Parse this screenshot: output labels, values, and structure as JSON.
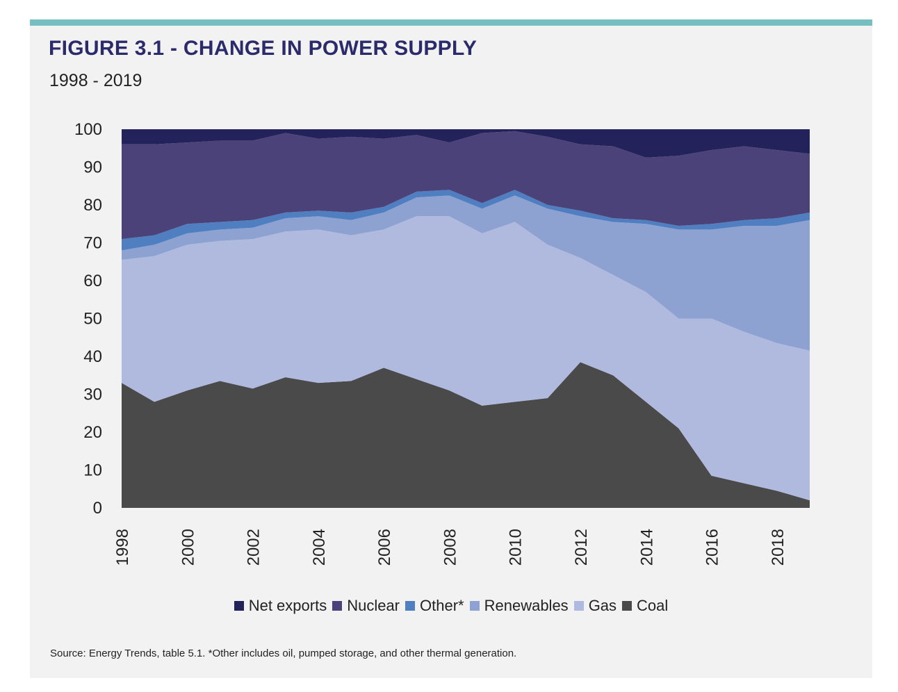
{
  "figure": {
    "title": "FIGURE 3.1 - CHANGE IN POWER SUPPLY",
    "subtitle": "1998 - 2019",
    "source_note": "Source: Energy Trends, table 5.1. *Other includes oil, pumped storage, and other thermal generation.",
    "accent_color": "#75bfc3"
  },
  "chart_data": {
    "type": "area",
    "stacked": true,
    "x": [
      1998,
      1999,
      2000,
      2001,
      2002,
      2003,
      2004,
      2005,
      2006,
      2007,
      2008,
      2009,
      2010,
      2011,
      2012,
      2013,
      2014,
      2015,
      2016,
      2017,
      2018,
      2019
    ],
    "x_tick_labels": [
      "1998",
      "2000",
      "2002",
      "2004",
      "2006",
      "2008",
      "2010",
      "2012",
      "2014",
      "2016",
      "2018"
    ],
    "y_ticks": [
      0,
      10,
      20,
      30,
      40,
      50,
      60,
      70,
      80,
      90,
      100
    ],
    "ylim": [
      0,
      100
    ],
    "xlabel": "",
    "ylabel": "",
    "grid": false,
    "legend_position": "bottom",
    "series": [
      {
        "name": "Coal",
        "color": "#4a4a4a",
        "values": [
          33,
          28,
          31,
          33.5,
          31.5,
          34.5,
          33,
          33.5,
          37,
          34,
          31,
          27,
          28,
          29,
          38.5,
          35,
          28,
          21,
          8.5,
          6.5,
          4.5,
          2
        ]
      },
      {
        "name": "Gas",
        "color": "#b0badf",
        "values": [
          32.5,
          38.5,
          38.5,
          37,
          39.5,
          38.5,
          40.5,
          38.5,
          36.5,
          43,
          46,
          45.5,
          47.5,
          40.5,
          27.5,
          26.5,
          29,
          29,
          41.5,
          40,
          39,
          39.5
        ]
      },
      {
        "name": "Renewables",
        "color": "#8ea2d2",
        "values": [
          2.5,
          3,
          3,
          3,
          3,
          3.5,
          3.5,
          4,
          4.5,
          5,
          5.5,
          6.5,
          7,
          9.5,
          11,
          14,
          18,
          23.5,
          23.5,
          28,
          31,
          34.5
        ]
      },
      {
        "name": "Other*",
        "color": "#4f7fc0",
        "values": [
          3,
          2.5,
          2.5,
          2,
          2,
          1.5,
          1.5,
          2,
          1.5,
          1.5,
          1.5,
          1.5,
          1.5,
          1,
          1.5,
          1,
          1,
          1,
          1.5,
          1.5,
          2,
          2
        ]
      },
      {
        "name": "Nuclear",
        "color": "#4b4279",
        "values": [
          25,
          24,
          21.5,
          21.5,
          21,
          21,
          19,
          20,
          18,
          15,
          12.5,
          18.5,
          15.5,
          18,
          17.5,
          19,
          16.5,
          18.5,
          19.5,
          19.5,
          18,
          15.5
        ]
      },
      {
        "name": "Net exports",
        "color": "#23225a",
        "values": [
          4,
          4,
          3.5,
          3,
          3,
          1,
          2.5,
          2,
          2.5,
          1.5,
          3.5,
          1,
          0.5,
          2,
          4,
          4.5,
          7.5,
          7,
          5.5,
          4.5,
          5.5,
          6.5
        ]
      }
    ],
    "legend_order": [
      "Net exports",
      "Nuclear",
      "Other*",
      "Renewables",
      "Gas",
      "Coal"
    ]
  }
}
